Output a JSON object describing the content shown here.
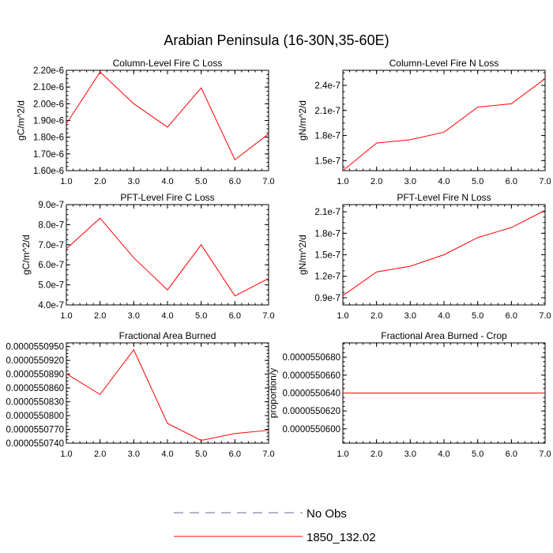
{
  "page_title": "Arabian Peninsula (16-30N,35-60E)",
  "legend": {
    "position": "bottom-center",
    "entries": [
      {
        "label": "No Obs",
        "color": "#6a6a9a",
        "dashed": true
      },
      {
        "label": "1850_132.02",
        "color": "#ff0000",
        "dashed": false
      }
    ]
  },
  "chart_data": [
    {
      "type": "line",
      "title": "Column-Level Fire C Loss",
      "xlabel": "",
      "ylabel": "gC/m^2/d",
      "xlim": [
        1,
        7
      ],
      "ylim": [
        1.6e-06,
        2.2e-06
      ],
      "xticks": [
        "1.0",
        "2.0",
        "3.0",
        "4.0",
        "5.0",
        "6.0",
        "7.0"
      ],
      "yticks": [
        {
          "value": 1.6e-06,
          "label": "1.60e-6"
        },
        {
          "value": 1.7e-06,
          "label": "1.70e-6"
        },
        {
          "value": 1.8e-06,
          "label": "1.80e-6"
        },
        {
          "value": 1.9e-06,
          "label": "1.90e-6"
        },
        {
          "value": 2e-06,
          "label": "2.00e-6"
        },
        {
          "value": 2.1e-06,
          "label": "2.10e-6"
        },
        {
          "value": 2.2e-06,
          "label": "2.20e-6"
        }
      ],
      "x": [
        1,
        2,
        3,
        4,
        5,
        6,
        7
      ],
      "series": [
        {
          "name": "1850_132.02",
          "color": "#ff0000",
          "values": [
            1.88e-06,
            2.19e-06,
            2e-06,
            1.86e-06,
            2.095e-06,
            1.665e-06,
            1.82e-06
          ]
        }
      ]
    },
    {
      "type": "line",
      "title": "Column-Level Fire N Loss",
      "xlabel": "",
      "ylabel": "gN/m^2/d",
      "xlim": [
        1,
        7
      ],
      "ylim": [
        1.38e-07,
        2.58e-07
      ],
      "xticks": [
        "1.0",
        "2.0",
        "3.0",
        "4.0",
        "5.0",
        "6.0",
        "7.0"
      ],
      "yticks": [
        {
          "value": 1.5e-07,
          "label": "1.5e-7"
        },
        {
          "value": 1.8e-07,
          "label": "1.8e-7"
        },
        {
          "value": 2.1e-07,
          "label": "2.1e-7"
        },
        {
          "value": 2.4e-07,
          "label": "2.4e-7"
        }
      ],
      "x": [
        1,
        2,
        3,
        4,
        5,
        6,
        7
      ],
      "series": [
        {
          "name": "1850_132.02",
          "color": "#ff0000",
          "values": [
            1.38e-07,
            1.71e-07,
            1.75e-07,
            1.84e-07,
            2.14e-07,
            2.18e-07,
            2.48e-07
          ]
        }
      ]
    },
    {
      "type": "line",
      "title": "PFT-Level Fire C Loss",
      "xlabel": "",
      "ylabel": "gC/m^2/d",
      "xlim": [
        1,
        7
      ],
      "ylim": [
        4e-07,
        9e-07
      ],
      "xticks": [
        "1.0",
        "2.0",
        "3.0",
        "4.0",
        "5.0",
        "6.0",
        "7.0"
      ],
      "yticks": [
        {
          "value": 4e-07,
          "label": "4.0e-7"
        },
        {
          "value": 5e-07,
          "label": "5.0e-7"
        },
        {
          "value": 6e-07,
          "label": "6.0e-7"
        },
        {
          "value": 7e-07,
          "label": "7.0e-7"
        },
        {
          "value": 8e-07,
          "label": "8.0e-7"
        },
        {
          "value": 9e-07,
          "label": "9.0e-7"
        }
      ],
      "x": [
        1,
        2,
        3,
        4,
        5,
        6,
        7
      ],
      "series": [
        {
          "name": "1850_132.02",
          "color": "#ff0000",
          "values": [
            6.8e-07,
            8.32e-07,
            6.35e-07,
            4.75e-07,
            7e-07,
            4.45e-07,
            5.32e-07
          ]
        }
      ]
    },
    {
      "type": "line",
      "title": "PFT-Level Fire N Loss",
      "xlabel": "",
      "ylabel": "gN/m^2/d",
      "xlim": [
        1,
        7
      ],
      "ylim": [
        8e-08,
        2.2e-07
      ],
      "xticks": [
        "1.0",
        "2.0",
        "3.0",
        "4.0",
        "5.0",
        "6.0",
        "7.0"
      ],
      "yticks": [
        {
          "value": 9e-08,
          "label": "0.9e-7"
        },
        {
          "value": 1.2e-07,
          "label": "1.2e-7"
        },
        {
          "value": 1.5e-07,
          "label": "1.5e-7"
        },
        {
          "value": 1.8e-07,
          "label": "1.8e-7"
        },
        {
          "value": 2.1e-07,
          "label": "2.1e-7"
        }
      ],
      "x": [
        1,
        2,
        3,
        4,
        5,
        6,
        7
      ],
      "series": [
        {
          "name": "1850_132.02",
          "color": "#ff0000",
          "values": [
            9.3e-08,
            1.26e-07,
            1.34e-07,
            1.5e-07,
            1.74e-07,
            1.88e-07,
            2.12e-07
          ]
        }
      ]
    },
    {
      "type": "line",
      "title": "Fractional Area Burned",
      "xlabel": "",
      "ylabel": "",
      "xlim": [
        1,
        7
      ],
      "ylim": [
        5.5074e-05,
        5.50958e-05
      ],
      "xticks": [
        "1.0",
        "2.0",
        "3.0",
        "4.0",
        "5.0",
        "6.0",
        "7.0"
      ],
      "yticks": [
        {
          "value": 5.5074e-05,
          "label": "0.0000550740"
        },
        {
          "value": 5.5077e-05,
          "label": "0.0000550770"
        },
        {
          "value": 5.508e-05,
          "label": "0.0000550800"
        },
        {
          "value": 5.5083e-05,
          "label": "0.0000550830"
        },
        {
          "value": 5.5086e-05,
          "label": "0.0000550860"
        },
        {
          "value": 5.5089e-05,
          "label": "0.0000550890"
        },
        {
          "value": 5.5092e-05,
          "label": "0.0000550920"
        },
        {
          "value": 5.5095e-05,
          "label": "0.0000550950"
        }
      ],
      "x": [
        1,
        2,
        3,
        4,
        5,
        6,
        7
      ],
      "series": [
        {
          "name": "1850_132.02",
          "color": "#ff0000",
          "values": [
            5.50891e-05,
            5.50846e-05,
            5.50943e-05,
            5.50783e-05,
            5.50746e-05,
            5.50761e-05,
            5.50768e-05
          ]
        }
      ]
    },
    {
      "type": "line",
      "title": "Fractional Area Burned - Crop",
      "xlabel": "",
      "ylabel": "proportion/y",
      "xlim": [
        1,
        7
      ],
      "ylim": [
        5.50584e-05,
        5.50696e-05
      ],
      "xticks": [
        "1.0",
        "2.0",
        "3.0",
        "4.0",
        "5.0",
        "6.0",
        "7.0"
      ],
      "yticks": [
        {
          "value": 5.506e-05,
          "label": "0.0000550600"
        },
        {
          "value": 5.5062e-05,
          "label": "0.0000550620"
        },
        {
          "value": 5.5064e-05,
          "label": "0.0000550640"
        },
        {
          "value": 5.5066e-05,
          "label": "0.0000550660"
        },
        {
          "value": 5.5068e-05,
          "label": "0.0000550680"
        }
      ],
      "x": [
        1,
        2,
        3,
        4,
        5,
        6,
        7
      ],
      "series": [
        {
          "name": "1850_132.02",
          "color": "#ff0000",
          "values": [
            5.5064e-05,
            5.5064e-05,
            5.5064e-05,
            5.5064e-05,
            5.5064e-05,
            5.5064e-05,
            5.5064e-05
          ]
        }
      ]
    }
  ]
}
